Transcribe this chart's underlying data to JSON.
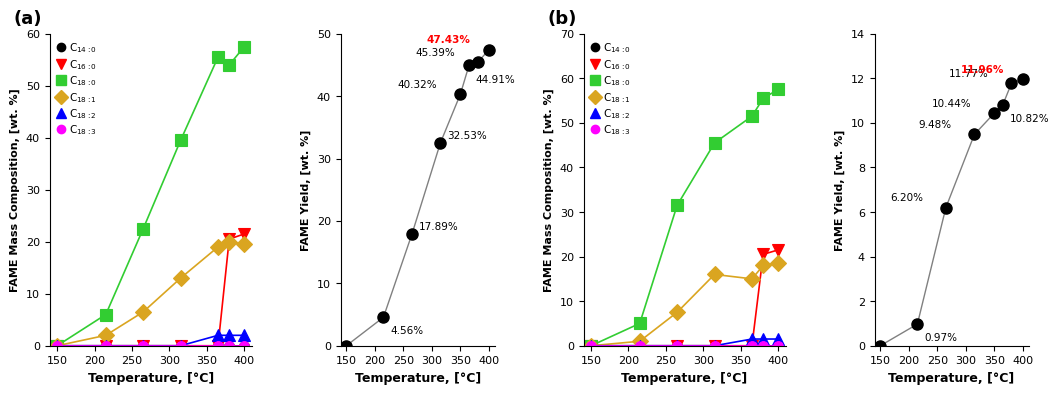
{
  "legend_labels": [
    "C$_{14:0}$",
    "C$_{16:0}$",
    "C$_{18:0}$",
    "C$_{18:1}$",
    "C$_{18:2}$",
    "C$_{18:3}$"
  ],
  "legend_colors": [
    "black",
    "red",
    "limegreen",
    "goldenrod",
    "blue",
    "magenta"
  ],
  "legend_markers": [
    "o",
    "v",
    "s",
    "D",
    "^",
    "o"
  ],
  "legend_markersizes": [
    7,
    8,
    8,
    8,
    8,
    7
  ],
  "ylabel_comp": "FAME Mass Composition, [wt. %]",
  "ylabel_yield": "FAME Yield, [wt. %]",
  "xlabel": "Temperature, [°C]",
  "panel_a_comp": {
    "temps": [
      150,
      215,
      265,
      315,
      365,
      380,
      400
    ],
    "C14_0": [
      0,
      0,
      0,
      0,
      0,
      0,
      0
    ],
    "C16_0": [
      0,
      0,
      0,
      0,
      0,
      20.5,
      21.5
    ],
    "C18_0": [
      0,
      6.0,
      22.5,
      39.5,
      55.5,
      54.0,
      57.5
    ],
    "C18_1": [
      0,
      2.0,
      6.5,
      13.0,
      19.0,
      20.0,
      19.5
    ],
    "C18_2": [
      0,
      0,
      0,
      0,
      2.0,
      2.0,
      2.0
    ],
    "C18_3": [
      0,
      0,
      0,
      0,
      0,
      0,
      0
    ]
  },
  "panel_b_comp": {
    "temps": [
      150,
      215,
      265,
      315,
      365,
      380,
      400
    ],
    "C14_0": [
      0,
      0,
      0,
      0,
      0,
      0,
      0
    ],
    "C16_0": [
      0,
      0,
      0,
      0,
      0,
      20.5,
      21.5
    ],
    "C18_0": [
      0,
      5.0,
      31.5,
      45.5,
      51.5,
      55.5,
      57.5
    ],
    "C18_1": [
      0,
      1.0,
      7.5,
      16.0,
      15.0,
      18.0,
      18.5
    ],
    "C18_2": [
      0,
      0,
      0,
      0,
      1.5,
      1.5,
      1.5
    ],
    "C18_3": [
      0,
      0,
      0,
      0,
      0,
      0,
      0
    ]
  },
  "a_yield_temps": [
    150,
    215,
    265,
    315,
    350,
    365,
    380,
    400
  ],
  "a_yield_vals": [
    0,
    4.56,
    17.89,
    32.53,
    40.32,
    44.91,
    45.39,
    47.43
  ],
  "a_annotations": [
    {
      "t": 215,
      "v": 4.56,
      "lbl": "4.56%",
      "xoff": 5,
      "yoff": -12,
      "color": "black"
    },
    {
      "t": 265,
      "v": 17.89,
      "lbl": "17.89%",
      "xoff": 5,
      "yoff": 3,
      "color": "black"
    },
    {
      "t": 315,
      "v": 32.53,
      "lbl": "32.53%",
      "xoff": 5,
      "yoff": 3,
      "color": "black"
    },
    {
      "t": 350,
      "v": 40.32,
      "lbl": "40.32%",
      "xoff": -45,
      "yoff": 5,
      "color": "black"
    },
    {
      "t": 365,
      "v": 44.91,
      "lbl": "44.91%",
      "xoff": 5,
      "yoff": -12,
      "color": "black"
    },
    {
      "t": 380,
      "v": 45.39,
      "lbl": "45.39%",
      "xoff": -45,
      "yoff": 5,
      "color": "black"
    },
    {
      "t": 400,
      "v": 47.43,
      "lbl": "47.43%",
      "xoff": -45,
      "yoff": 5,
      "color": "red"
    }
  ],
  "b_yield_temps": [
    150,
    215,
    265,
    315,
    350,
    365,
    380,
    400
  ],
  "b_yield_vals": [
    0,
    0.97,
    6.2,
    9.48,
    10.44,
    10.82,
    11.77,
    11.96
  ],
  "b_annotations": [
    {
      "t": 215,
      "v": 0.97,
      "lbl": "0.97%",
      "xoff": 5,
      "yoff": -12,
      "color": "black"
    },
    {
      "t": 265,
      "v": 6.2,
      "lbl": "6.20%",
      "xoff": -40,
      "yoff": 5,
      "color": "black"
    },
    {
      "t": 315,
      "v": 9.48,
      "lbl": "9.48%",
      "xoff": -40,
      "yoff": 5,
      "color": "black"
    },
    {
      "t": 350,
      "v": 10.44,
      "lbl": "10.44%",
      "xoff": -45,
      "yoff": 5,
      "color": "black"
    },
    {
      "t": 365,
      "v": 10.82,
      "lbl": "10.82%",
      "xoff": 5,
      "yoff": -12,
      "color": "black"
    },
    {
      "t": 380,
      "v": 11.77,
      "lbl": "11.77%",
      "xoff": -45,
      "yoff": 5,
      "color": "black"
    },
    {
      "t": 400,
      "v": 11.96,
      "lbl": "11.96%",
      "xoff": -45,
      "yoff": 5,
      "color": "red"
    }
  ]
}
